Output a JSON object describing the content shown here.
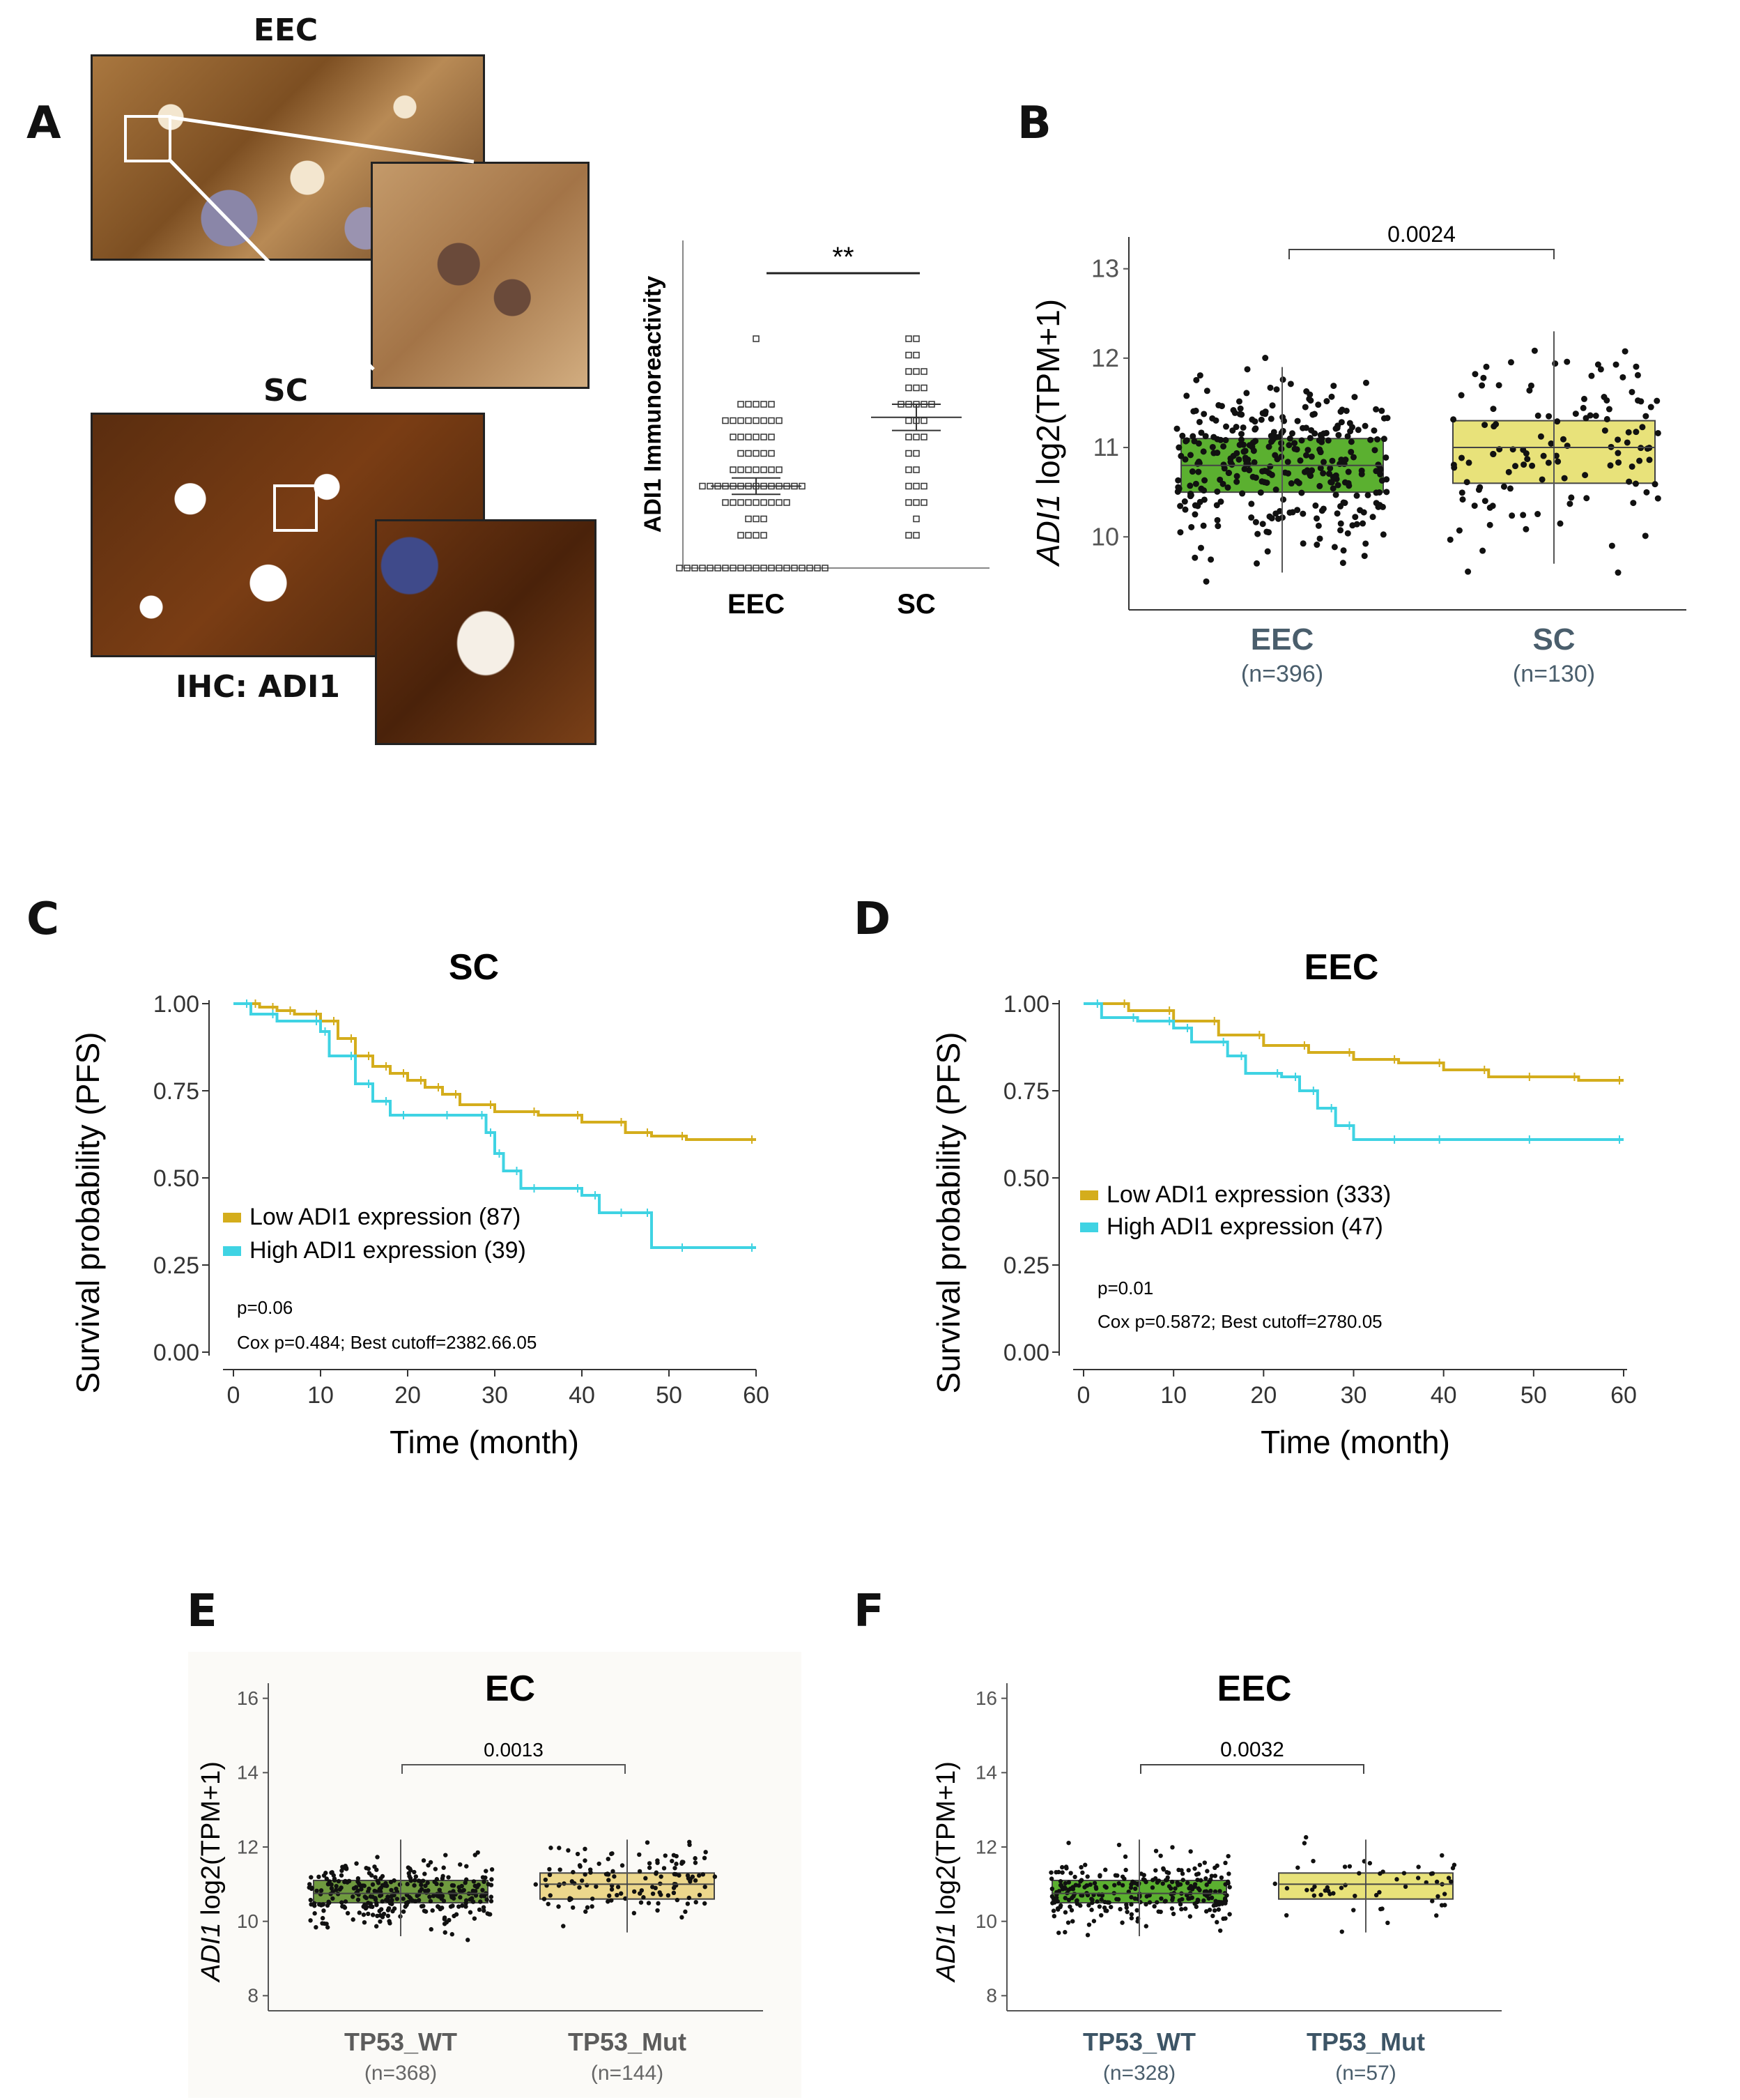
{
  "panels": {
    "A": {
      "letter": "A",
      "hist_top_label": "EEC",
      "hist_bottom_label": "SC",
      "ihc_label": "IHC: ADI1",
      "scatter": {
        "ylabel": "ADI1 Immunoreactivity",
        "significance": "**",
        "categories": [
          "EEC",
          "SC"
        ]
      }
    },
    "B": {
      "letter": "B",
      "ylabel_italic": "ADI1",
      "ylabel_rest": " log2(TPM+1)",
      "pvalue": "0.0024",
      "yticks": [
        "10",
        "11",
        "12",
        "13"
      ],
      "groups": [
        {
          "name": "EEC",
          "n": "(n=396)"
        },
        {
          "name": "SC",
          "n": "(n=130)"
        }
      ]
    },
    "C": {
      "letter": "C",
      "title": "SC",
      "ylabel": "Survival probability (PFS)",
      "xlabel": "Time (month)",
      "yticks": [
        "0.00",
        "0.25",
        "0.50",
        "0.75",
        "1.00"
      ],
      "xticks": [
        "0",
        "10",
        "20",
        "30",
        "40",
        "50",
        "60"
      ],
      "legend": [
        "Low ADI1 expression (87)",
        "High ADI1 expression (39)"
      ],
      "p": "p=0.06",
      "cox": "Cox p=0.484; Best cutoff=2382.66.05"
    },
    "D": {
      "letter": "D",
      "title": "EEC",
      "ylabel": "Survival probability (PFS)",
      "xlabel": "Time (month)",
      "yticks": [
        "0.00",
        "0.25",
        "0.50",
        "0.75",
        "1.00"
      ],
      "xticks": [
        "0",
        "10",
        "20",
        "30",
        "40",
        "50",
        "60"
      ],
      "legend": [
        "Low ADI1 expression (333)",
        "High ADI1 expression (47)"
      ],
      "p": "p=0.01",
      "cox": "Cox p=0.5872; Best cutoff=2780.05"
    },
    "E": {
      "letter": "E",
      "title": "EC",
      "ylabel_italic": "ADI1",
      "ylabel_rest": " log2(TPM+1)",
      "pvalue": "0.0013",
      "yticks": [
        "8",
        "10",
        "12",
        "14",
        "16"
      ],
      "groups": [
        {
          "name": "TP53_WT",
          "n": "(n=368)"
        },
        {
          "name": "TP53_Mut",
          "n": "(n=144)"
        }
      ]
    },
    "F": {
      "letter": "F",
      "title": "EEC",
      "ylabel_italic": "ADI1",
      "ylabel_rest": " log2(TPM+1)",
      "pvalue": "0.0032",
      "yticks": [
        "8",
        "10",
        "12",
        "14",
        "16"
      ],
      "groups": [
        {
          "name": "TP53_WT",
          "n": "(n=328)"
        },
        {
          "name": "TP53_Mut",
          "n": "(n=57)"
        }
      ]
    }
  },
  "colors": {
    "green": "#5bb030",
    "yellow": "#e8e27a",
    "olive_green": "#6f9a3f",
    "beige": "#ecd78c",
    "km_low": "#d4ad1c",
    "km_high": "#3fd3e3"
  },
  "chart_data": [
    {
      "type": "scatter",
      "panel": "A",
      "ylabel": "ADI1 Immunoreactivity",
      "categories": [
        "EEC",
        "SC"
      ],
      "series": [
        {
          "name": "EEC",
          "values": [
            0,
            0,
            0,
            0,
            0,
            0,
            0,
            0,
            0,
            0,
            0,
            0,
            0,
            0,
            0,
            0,
            0,
            0,
            0,
            0,
            2,
            2,
            2,
            2,
            3,
            3,
            3,
            4,
            4,
            4,
            4,
            4,
            4,
            4,
            4,
            4,
            5,
            5,
            5,
            5,
            5,
            5,
            5,
            5,
            5,
            5,
            5,
            5,
            5,
            5,
            6,
            6,
            6,
            6,
            6,
            6,
            6,
            7,
            7,
            7,
            7,
            7,
            8,
            8,
            8,
            8,
            8,
            8,
            9,
            9,
            9,
            9,
            9,
            9,
            9,
            9,
            10,
            10,
            10,
            10,
            10,
            14
          ]
        },
        {
          "name": "SC",
          "values": [
            2,
            2,
            3,
            4,
            4,
            4,
            5,
            5,
            5,
            6,
            6,
            7,
            7,
            8,
            8,
            8,
            9,
            9,
            9,
            10,
            10,
            10,
            10,
            10,
            11,
            11,
            11,
            12,
            12,
            12,
            13,
            13,
            14,
            14
          ]
        }
      ],
      "means": [
        5.0,
        9.2
      ],
      "sem": [
        0.5,
        0.8
      ],
      "significance": "**"
    },
    {
      "type": "box",
      "panel": "B",
      "ylabel": "ADI1 log2(TPM+1)",
      "categories": [
        "EEC (n=396)",
        "SC (n=130)"
      ],
      "ylim": [
        9.3,
        13.2
      ],
      "boxes": [
        {
          "min": 9.6,
          "q1": 10.5,
          "median": 10.8,
          "q3": 11.1,
          "max": 11.9
        },
        {
          "min": 9.7,
          "q1": 10.6,
          "median": 11.0,
          "q3": 11.3,
          "max": 12.3
        }
      ],
      "pvalue": "0.0024"
    },
    {
      "type": "line",
      "panel": "C",
      "title": "SC",
      "xlabel": "Time (month)",
      "ylabel": "Survival probability (PFS)",
      "xlim": [
        0,
        60
      ],
      "ylim": [
        0,
        1
      ],
      "series": [
        {
          "name": "Low ADI1 expression (87)",
          "x": [
            0,
            3,
            5,
            7,
            10,
            12,
            14,
            16,
            18,
            20,
            22,
            24,
            26,
            30,
            35,
            40,
            45,
            48,
            52,
            60
          ],
          "y": [
            1.0,
            0.99,
            0.98,
            0.97,
            0.95,
            0.9,
            0.85,
            0.82,
            0.8,
            0.78,
            0.76,
            0.74,
            0.71,
            0.69,
            0.68,
            0.66,
            0.63,
            0.62,
            0.61,
            0.61
          ]
        },
        {
          "name": "High ADI1 expression (39)",
          "x": [
            0,
            2,
            5,
            10,
            11,
            14,
            16,
            18,
            20,
            25,
            29,
            30,
            31,
            33,
            35,
            40,
            42,
            45,
            48,
            52,
            60
          ],
          "y": [
            1.0,
            0.97,
            0.95,
            0.92,
            0.85,
            0.77,
            0.72,
            0.68,
            0.68,
            0.68,
            0.63,
            0.57,
            0.52,
            0.47,
            0.47,
            0.45,
            0.4,
            0.4,
            0.3,
            0.3,
            0.3
          ]
        }
      ],
      "p": "p=0.06"
    },
    {
      "type": "line",
      "panel": "D",
      "title": "EEC",
      "xlabel": "Time (month)",
      "ylabel": "Survival probability (PFS)",
      "xlim": [
        0,
        60
      ],
      "ylim": [
        0,
        1
      ],
      "series": [
        {
          "name": "Low ADI1 expression (333)",
          "x": [
            0,
            5,
            10,
            15,
            20,
            25,
            30,
            35,
            40,
            45,
            50,
            55,
            60
          ],
          "y": [
            1.0,
            0.98,
            0.95,
            0.91,
            0.88,
            0.86,
            0.84,
            0.83,
            0.81,
            0.79,
            0.79,
            0.78,
            0.78
          ]
        },
        {
          "name": "High ADI1 expression (47)",
          "x": [
            0,
            2,
            6,
            10,
            12,
            16,
            18,
            22,
            24,
            26,
            28,
            30,
            35,
            40,
            50,
            60
          ],
          "y": [
            1.0,
            0.96,
            0.95,
            0.93,
            0.89,
            0.85,
            0.8,
            0.79,
            0.75,
            0.7,
            0.65,
            0.61,
            0.61,
            0.61,
            0.61,
            0.61
          ]
        }
      ],
      "p": "p=0.01"
    },
    {
      "type": "box",
      "panel": "E",
      "title": "EC",
      "ylabel": "ADI1 log2(TPM+1)",
      "categories": [
        "TP53_WT (n=368)",
        "TP53_Mut (n=144)"
      ],
      "ylim": [
        7.5,
        16.5
      ],
      "boxes": [
        {
          "min": 9.6,
          "q1": 10.5,
          "median": 10.75,
          "q3": 11.1,
          "max": 12.2
        },
        {
          "min": 9.7,
          "q1": 10.6,
          "median": 11.0,
          "q3": 11.3,
          "max": 12.2
        }
      ],
      "pvalue": "0.0013"
    },
    {
      "type": "box",
      "panel": "F",
      "title": "EEC",
      "ylabel": "ADI1 log2(TPM+1)",
      "categories": [
        "TP53_WT (n=328)",
        "TP53_Mut (n=57)"
      ],
      "ylim": [
        7.5,
        16.5
      ],
      "boxes": [
        {
          "min": 9.6,
          "q1": 10.5,
          "median": 10.75,
          "q3": 11.1,
          "max": 12.2
        },
        {
          "min": 9.7,
          "q1": 10.6,
          "median": 11.0,
          "q3": 11.3,
          "max": 12.2
        }
      ],
      "pvalue": "0.0032"
    }
  ]
}
